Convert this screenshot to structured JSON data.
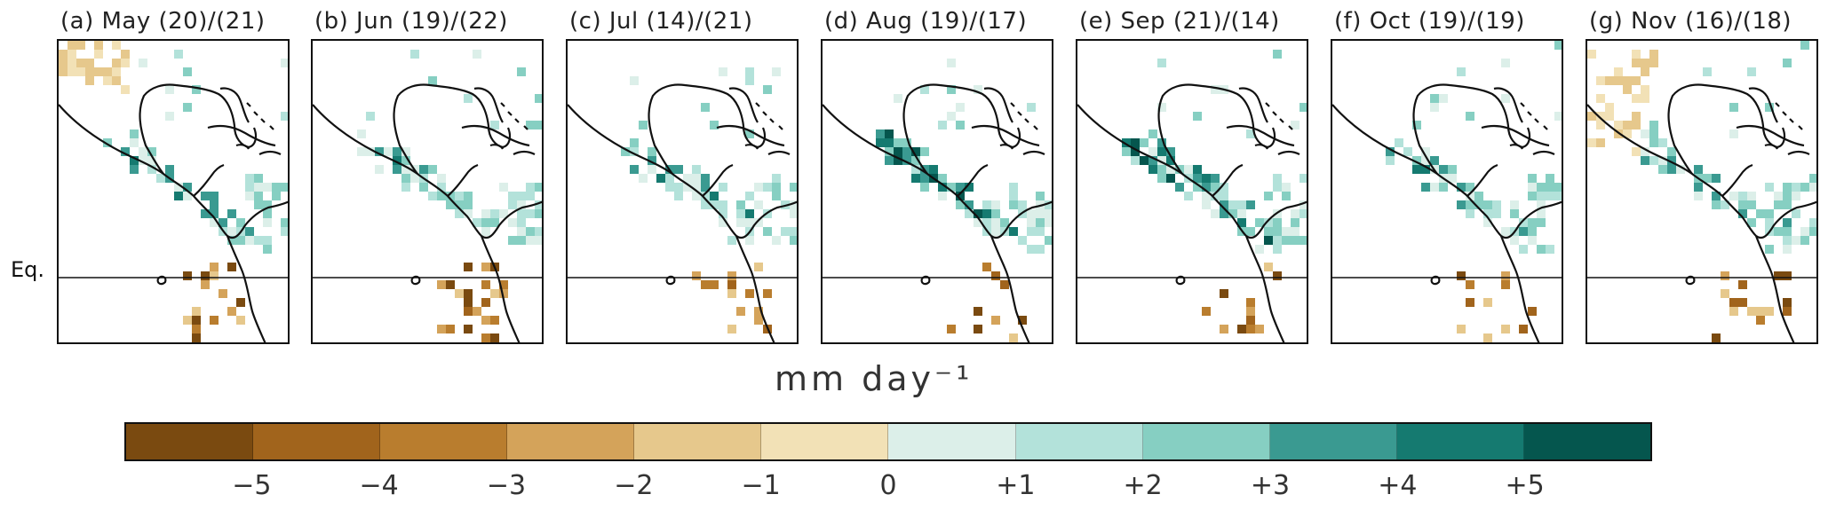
{
  "panels": [
    {
      "label": "(a) May (20)/(21)"
    },
    {
      "label": "(b) Jun (19)/(22)"
    },
    {
      "label": "(c) Jul (14)/(21)"
    },
    {
      "label": "(d) Aug (19)/(17)"
    },
    {
      "label": "(e) Sep (21)/(14)"
    },
    {
      "label": "(f) Oct (19)/(19)"
    },
    {
      "label": "(g) Nov (16)/(18)"
    }
  ],
  "equator_label": "Eq.",
  "units_label": "mm  day⁻¹",
  "colorbar": {
    "colors": [
      "#7a4a10",
      "#a1641c",
      "#b97d2e",
      "#d4a35a",
      "#e6c88c",
      "#f2e1b6",
      "#dcefe9",
      "#b3e2da",
      "#86cfc2",
      "#3a9a91",
      "#157a70",
      "#05564e"
    ],
    "tick_labels": [
      "−5",
      "−4",
      "−3",
      "−2",
      "−1",
      "0",
      "+1",
      "+2",
      "+3",
      "+4",
      "+5"
    ]
  }
}
